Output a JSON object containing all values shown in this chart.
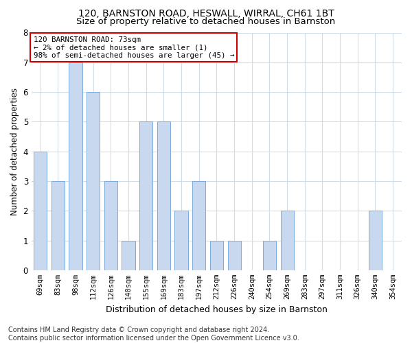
{
  "title1": "120, BARNSTON ROAD, HESWALL, WIRRAL, CH61 1BT",
  "title2": "Size of property relative to detached houses in Barnston",
  "xlabel": "Distribution of detached houses by size in Barnston",
  "ylabel": "Number of detached properties",
  "categories": [
    "69sqm",
    "83sqm",
    "98sqm",
    "112sqm",
    "126sqm",
    "140sqm",
    "155sqm",
    "169sqm",
    "183sqm",
    "197sqm",
    "212sqm",
    "226sqm",
    "240sqm",
    "254sqm",
    "269sqm",
    "283sqm",
    "297sqm",
    "311sqm",
    "326sqm",
    "340sqm",
    "354sqm"
  ],
  "values": [
    4,
    3,
    7,
    6,
    3,
    1,
    5,
    5,
    2,
    3,
    1,
    1,
    0,
    1,
    2,
    0,
    0,
    0,
    0,
    2,
    0
  ],
  "bar_color": "#c8d8ee",
  "bar_edge_color": "#7aaadd",
  "annotation_box_text": "120 BARNSTON ROAD: 73sqm\n← 2% of detached houses are smaller (1)\n98% of semi-detached houses are larger (45) →",
  "annotation_box_color": "#ffffff",
  "annotation_box_edge_color": "#cc0000",
  "ylim": [
    0,
    8
  ],
  "yticks": [
    0,
    1,
    2,
    3,
    4,
    5,
    6,
    7,
    8
  ],
  "footer": "Contains HM Land Registry data © Crown copyright and database right 2024.\nContains public sector information licensed under the Open Government Licence v3.0.",
  "grid_color": "#d0dce8",
  "bg_color": "#ffffff",
  "title1_fontsize": 10,
  "title2_fontsize": 9.5,
  "xlabel_fontsize": 9,
  "ylabel_fontsize": 8.5,
  "tick_fontsize": 7.5,
  "footer_fontsize": 7
}
